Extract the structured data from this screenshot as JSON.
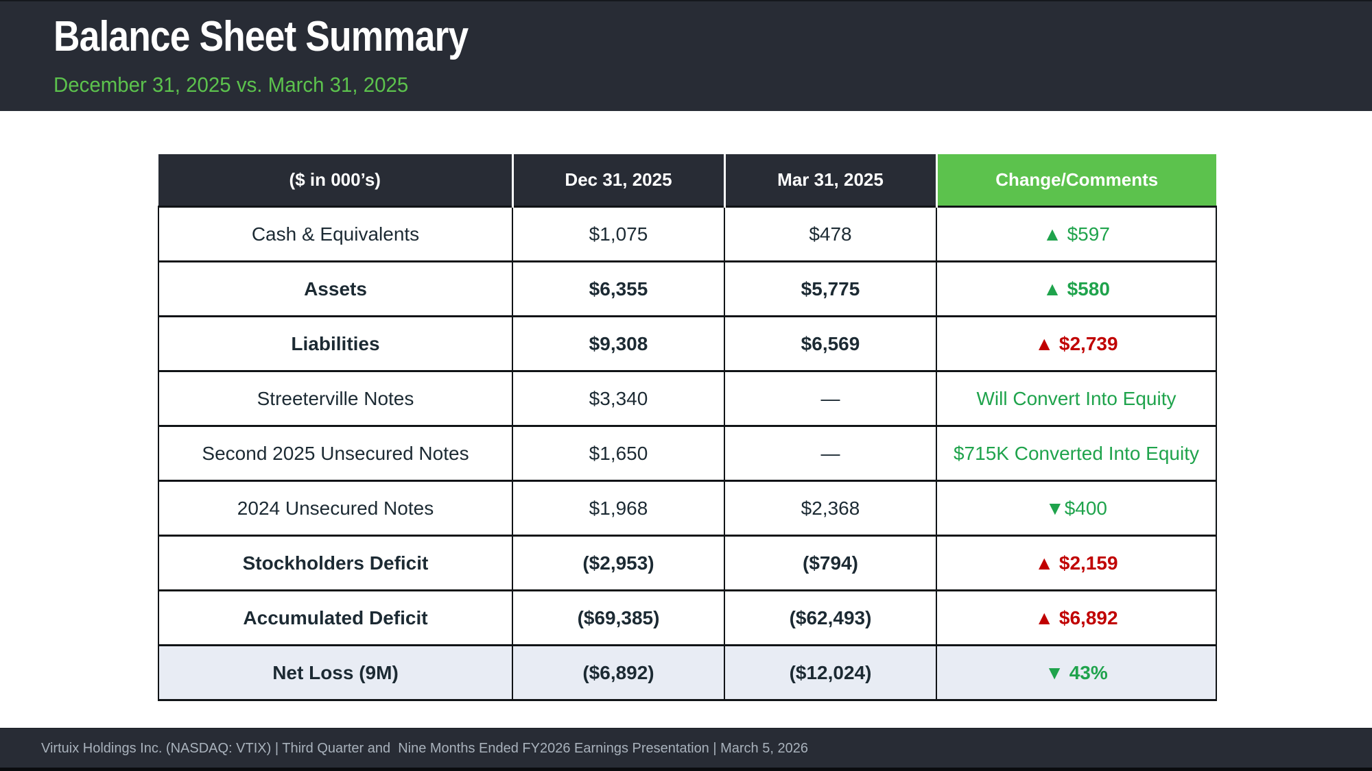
{
  "slide": {
    "title": "Balance Sheet Summary",
    "subtitle": "December 31, 2025 vs. March 31, 2025",
    "footer": "Virtuix Holdings Inc. (NASDAQ: VTIX) | Third Quarter and  Nine Months Ended FY2026 Earnings Presentation | March 5, 2026"
  },
  "colors": {
    "band_dark": "#282c35",
    "header_green": "#5cc24d",
    "subtitle_green": "#5cc24d",
    "change_green": "#1fa34c",
    "change_red": "#c00000",
    "shaded_row": "#e8ecf4",
    "body_text": "#1c2a33"
  },
  "table": {
    "columns": [
      {
        "key": "label",
        "header": "($ in 000’s)"
      },
      {
        "key": "dec",
        "header": "Dec 31, 2025"
      },
      {
        "key": "mar",
        "header": "Mar 31, 2025"
      },
      {
        "key": "change",
        "header": "Change/Comments"
      }
    ],
    "rows": [
      {
        "label": "Cash & Equivalents",
        "dec": "$1,075",
        "mar": "$478",
        "change": "▲ $597",
        "change_color": "green",
        "bold": false,
        "shaded": false
      },
      {
        "label": "Assets",
        "dec": "$6,355",
        "mar": "$5,775",
        "change": "▲ $580",
        "change_color": "green",
        "bold": true,
        "shaded": false
      },
      {
        "label": "Liabilities",
        "dec": "$9,308",
        "mar": "$6,569",
        "change": "▲ $2,739",
        "change_color": "red",
        "bold": true,
        "shaded": false
      },
      {
        "label": "Streeterville Notes",
        "dec": "$3,340",
        "mar": "—",
        "change": "Will Convert Into Equity",
        "change_color": "green",
        "bold": false,
        "shaded": false
      },
      {
        "label": "Second 2025 Unsecured Notes",
        "dec": "$1,650",
        "mar": "—",
        "change": "$715K Converted Into Equity",
        "change_color": "green",
        "bold": false,
        "shaded": false
      },
      {
        "label": "2024 Unsecured Notes",
        "dec": "$1,968",
        "mar": "$2,368",
        "change": "▼$400",
        "change_color": "green",
        "bold": false,
        "shaded": false
      },
      {
        "label": "Stockholders Deficit",
        "dec": "($2,953)",
        "mar": "($794)",
        "change": "▲ $2,159",
        "change_color": "red",
        "bold": true,
        "shaded": false
      },
      {
        "label": "Accumulated Deficit",
        "dec": "($69,385)",
        "mar": "($62,493)",
        "change": "▲ $6,892",
        "change_color": "red",
        "bold": true,
        "shaded": false
      },
      {
        "label": "Net Loss (9M)",
        "dec": "($6,892)",
        "mar": "($12,024)",
        "change": "▼ 43%",
        "change_color": "green",
        "bold": true,
        "shaded": true
      }
    ]
  }
}
